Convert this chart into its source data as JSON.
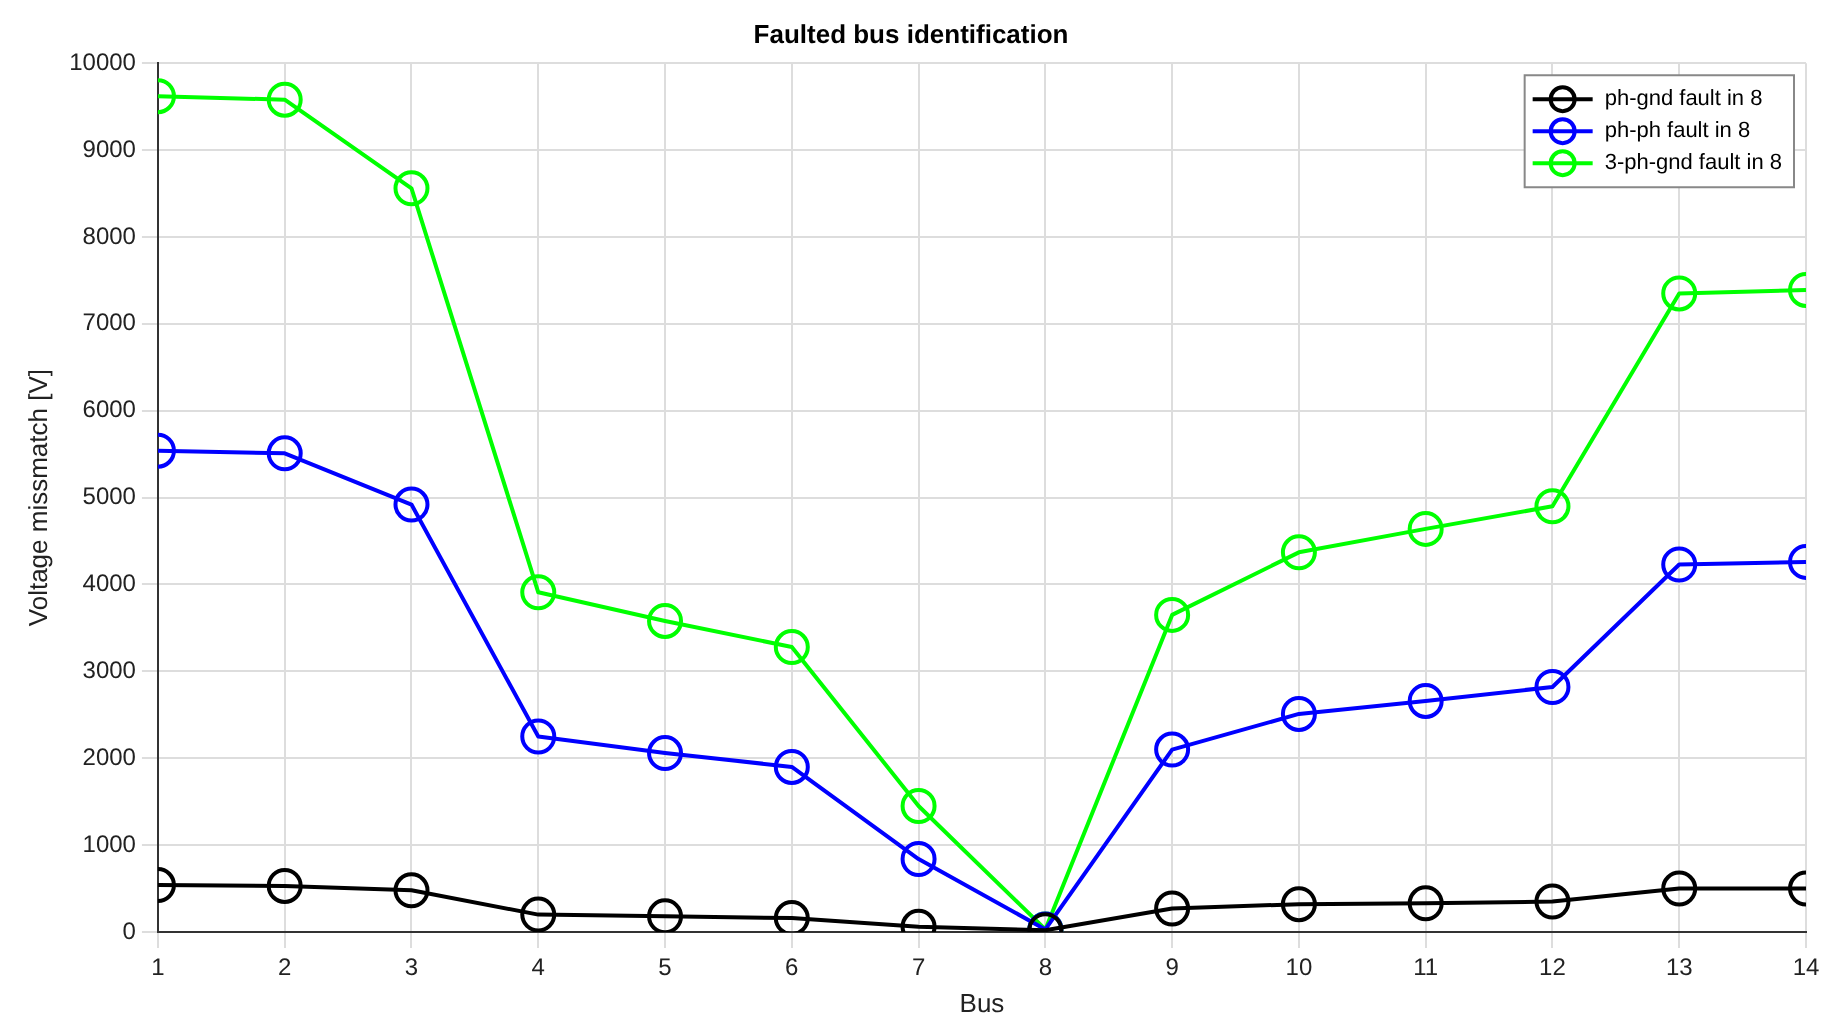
{
  "chart_data": {
    "type": "line",
    "title": "Faulted bus identification",
    "xlabel": "Bus",
    "ylabel": "Voltage missmatch [V]",
    "x": [
      1,
      2,
      3,
      4,
      5,
      6,
      7,
      8,
      9,
      10,
      11,
      12,
      13,
      14
    ],
    "series": [
      {
        "name": "ph-gnd fault in 8",
        "color": "#000000",
        "values": [
          540,
          530,
          480,
          200,
          180,
          160,
          60,
          20,
          270,
          320,
          330,
          350,
          500,
          500
        ]
      },
      {
        "name": "ph-ph fault in 8",
        "color": "#0000ff",
        "values": [
          5540,
          5510,
          4920,
          2250,
          2060,
          1900,
          840,
          30,
          2100,
          2510,
          2660,
          2820,
          4230,
          4260
        ]
      },
      {
        "name": "3-ph-gnd fault in 8",
        "color": "#00ff00",
        "values": [
          9620,
          9580,
          8560,
          3910,
          3580,
          3280,
          1450,
          30,
          3650,
          4370,
          4640,
          4900,
          7350,
          7390
        ]
      }
    ],
    "xlim": [
      1,
      14
    ],
    "xticks": [
      1,
      2,
      3,
      4,
      5,
      6,
      7,
      8,
      9,
      10,
      11,
      12,
      13,
      14
    ],
    "ylim": [
      0,
      10000
    ],
    "yticks": [
      0,
      1000,
      2000,
      3000,
      4000,
      5000,
      6000,
      7000,
      8000,
      9000,
      10000
    ],
    "grid": true,
    "legend": "top right",
    "marker": "circle",
    "line_style": "solid"
  }
}
